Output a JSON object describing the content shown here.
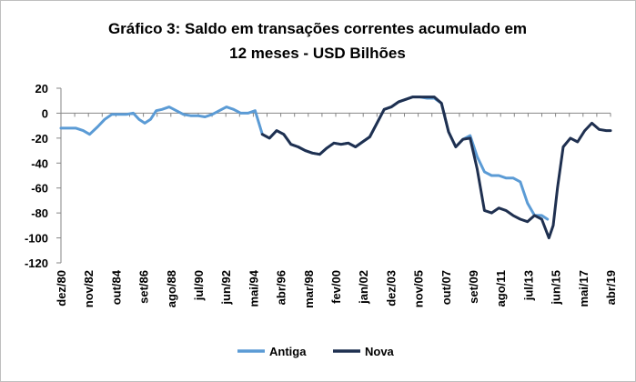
{
  "chart_data": {
    "type": "line",
    "title_lines": [
      "Gráfico 3: Saldo em transações correntes acumulado  em",
      "12 meses - USD Bilhões"
    ],
    "xlabel": "",
    "ylabel": "",
    "ylim": [
      -120,
      20
    ],
    "yticks": [
      "20",
      "0",
      "-20",
      "-40",
      "-60",
      "-80",
      "-100",
      "-120"
    ],
    "x_tick_labels": [
      "dez/80",
      "nov/82",
      "out/84",
      "set/86",
      "ago/88",
      "jul/90",
      "jun/92",
      "mai/94",
      "abr/96",
      "mar/98",
      "fev/00",
      "jan/02",
      "dez/03",
      "nov/05",
      "out/07",
      "set/09",
      "ago/11",
      "jul/13",
      "jun/15",
      "mai/17",
      "abr/19"
    ],
    "grid": false,
    "legend_position": "bottom",
    "colors": {
      "Antiga": "#5b9bd5",
      "Nova": "#1f3050"
    },
    "series": [
      {
        "name": "Antiga",
        "x": [
          1980.95,
          1981.5,
          1982.0,
          1982.5,
          1982.95,
          1983.5,
          1984.0,
          1984.5,
          1985.0,
          1985.5,
          1986.0,
          1986.4,
          1986.8,
          1987.2,
          1987.6,
          1988.0,
          1988.5,
          1989.0,
          1989.5,
          1990.0,
          1990.5,
          1991.0,
          1991.5,
          1992.0,
          1992.5,
          1993.0,
          1993.5,
          1994.0,
          1994.5,
          1995.0,
          1995.5,
          1996.0,
          1996.5,
          1997.0,
          1997.5,
          1998.0,
          1998.5,
          1999.0,
          1999.5,
          2000.0,
          2000.5,
          2001.0,
          2001.5,
          2002.0,
          2002.5,
          2003.0,
          2003.5,
          2004.0,
          2004.5,
          2005.0,
          2005.5,
          2006.0,
          2006.5,
          2007.0,
          2007.5,
          2008.0,
          2008.5,
          2009.0,
          2009.5,
          2010.0,
          2010.5,
          2011.0,
          2011.5,
          2012.0,
          2012.5,
          2013.0,
          2013.5,
          2014.0,
          2014.5,
          2014.9
        ],
        "y": [
          -12,
          -12,
          -12,
          -14,
          -17,
          -11,
          -5,
          -1,
          -1,
          -1,
          0,
          -5,
          -8,
          -5,
          2,
          3,
          5,
          2,
          -1,
          -2,
          -2,
          -3,
          -1,
          2,
          5,
          3,
          0,
          0,
          2,
          -17,
          -20,
          -14,
          -17,
          -25,
          -27,
          -30,
          -32,
          -33,
          -28,
          -24,
          -25,
          -24,
          -27,
          -23,
          -19,
          -8,
          3,
          5,
          9,
          11,
          13,
          13,
          12,
          12,
          8,
          -15,
          -27,
          -21,
          -18,
          -35,
          -47,
          -50,
          -50,
          -52,
          -52,
          -55,
          -72,
          -82,
          -82,
          -85
        ]
      },
      {
        "name": "Nova",
        "x": [
          1995.0,
          1995.5,
          1996.0,
          1996.5,
          1997.0,
          1997.5,
          1998.0,
          1998.5,
          1999.0,
          1999.5,
          2000.0,
          2000.5,
          2001.0,
          2001.5,
          2002.0,
          2002.5,
          2003.0,
          2003.5,
          2004.0,
          2004.5,
          2005.0,
          2005.5,
          2006.0,
          2006.5,
          2007.0,
          2007.5,
          2008.0,
          2008.5,
          2009.0,
          2009.5,
          2010.0,
          2010.5,
          2011.0,
          2011.5,
          2012.0,
          2012.5,
          2013.0,
          2013.5,
          2014.0,
          2014.5,
          2015.0,
          2015.3,
          2015.6,
          2016.0,
          2016.5,
          2017.0,
          2017.5,
          2018.0,
          2018.5,
          2019.0,
          2019.3
        ],
        "y": [
          -17,
          -20,
          -14,
          -17,
          -25,
          -27,
          -30,
          -32,
          -33,
          -28,
          -24,
          -25,
          -24,
          -27,
          -23,
          -19,
          -8,
          3,
          5,
          9,
          11,
          13,
          13,
          13,
          13,
          8,
          -15,
          -27,
          -21,
          -20,
          -45,
          -78,
          -80,
          -76,
          -78,
          -82,
          -85,
          -87,
          -82,
          -85,
          -100,
          -90,
          -60,
          -27,
          -20,
          -23,
          -14,
          -8,
          -13,
          -14,
          -14
        ]
      }
    ]
  }
}
